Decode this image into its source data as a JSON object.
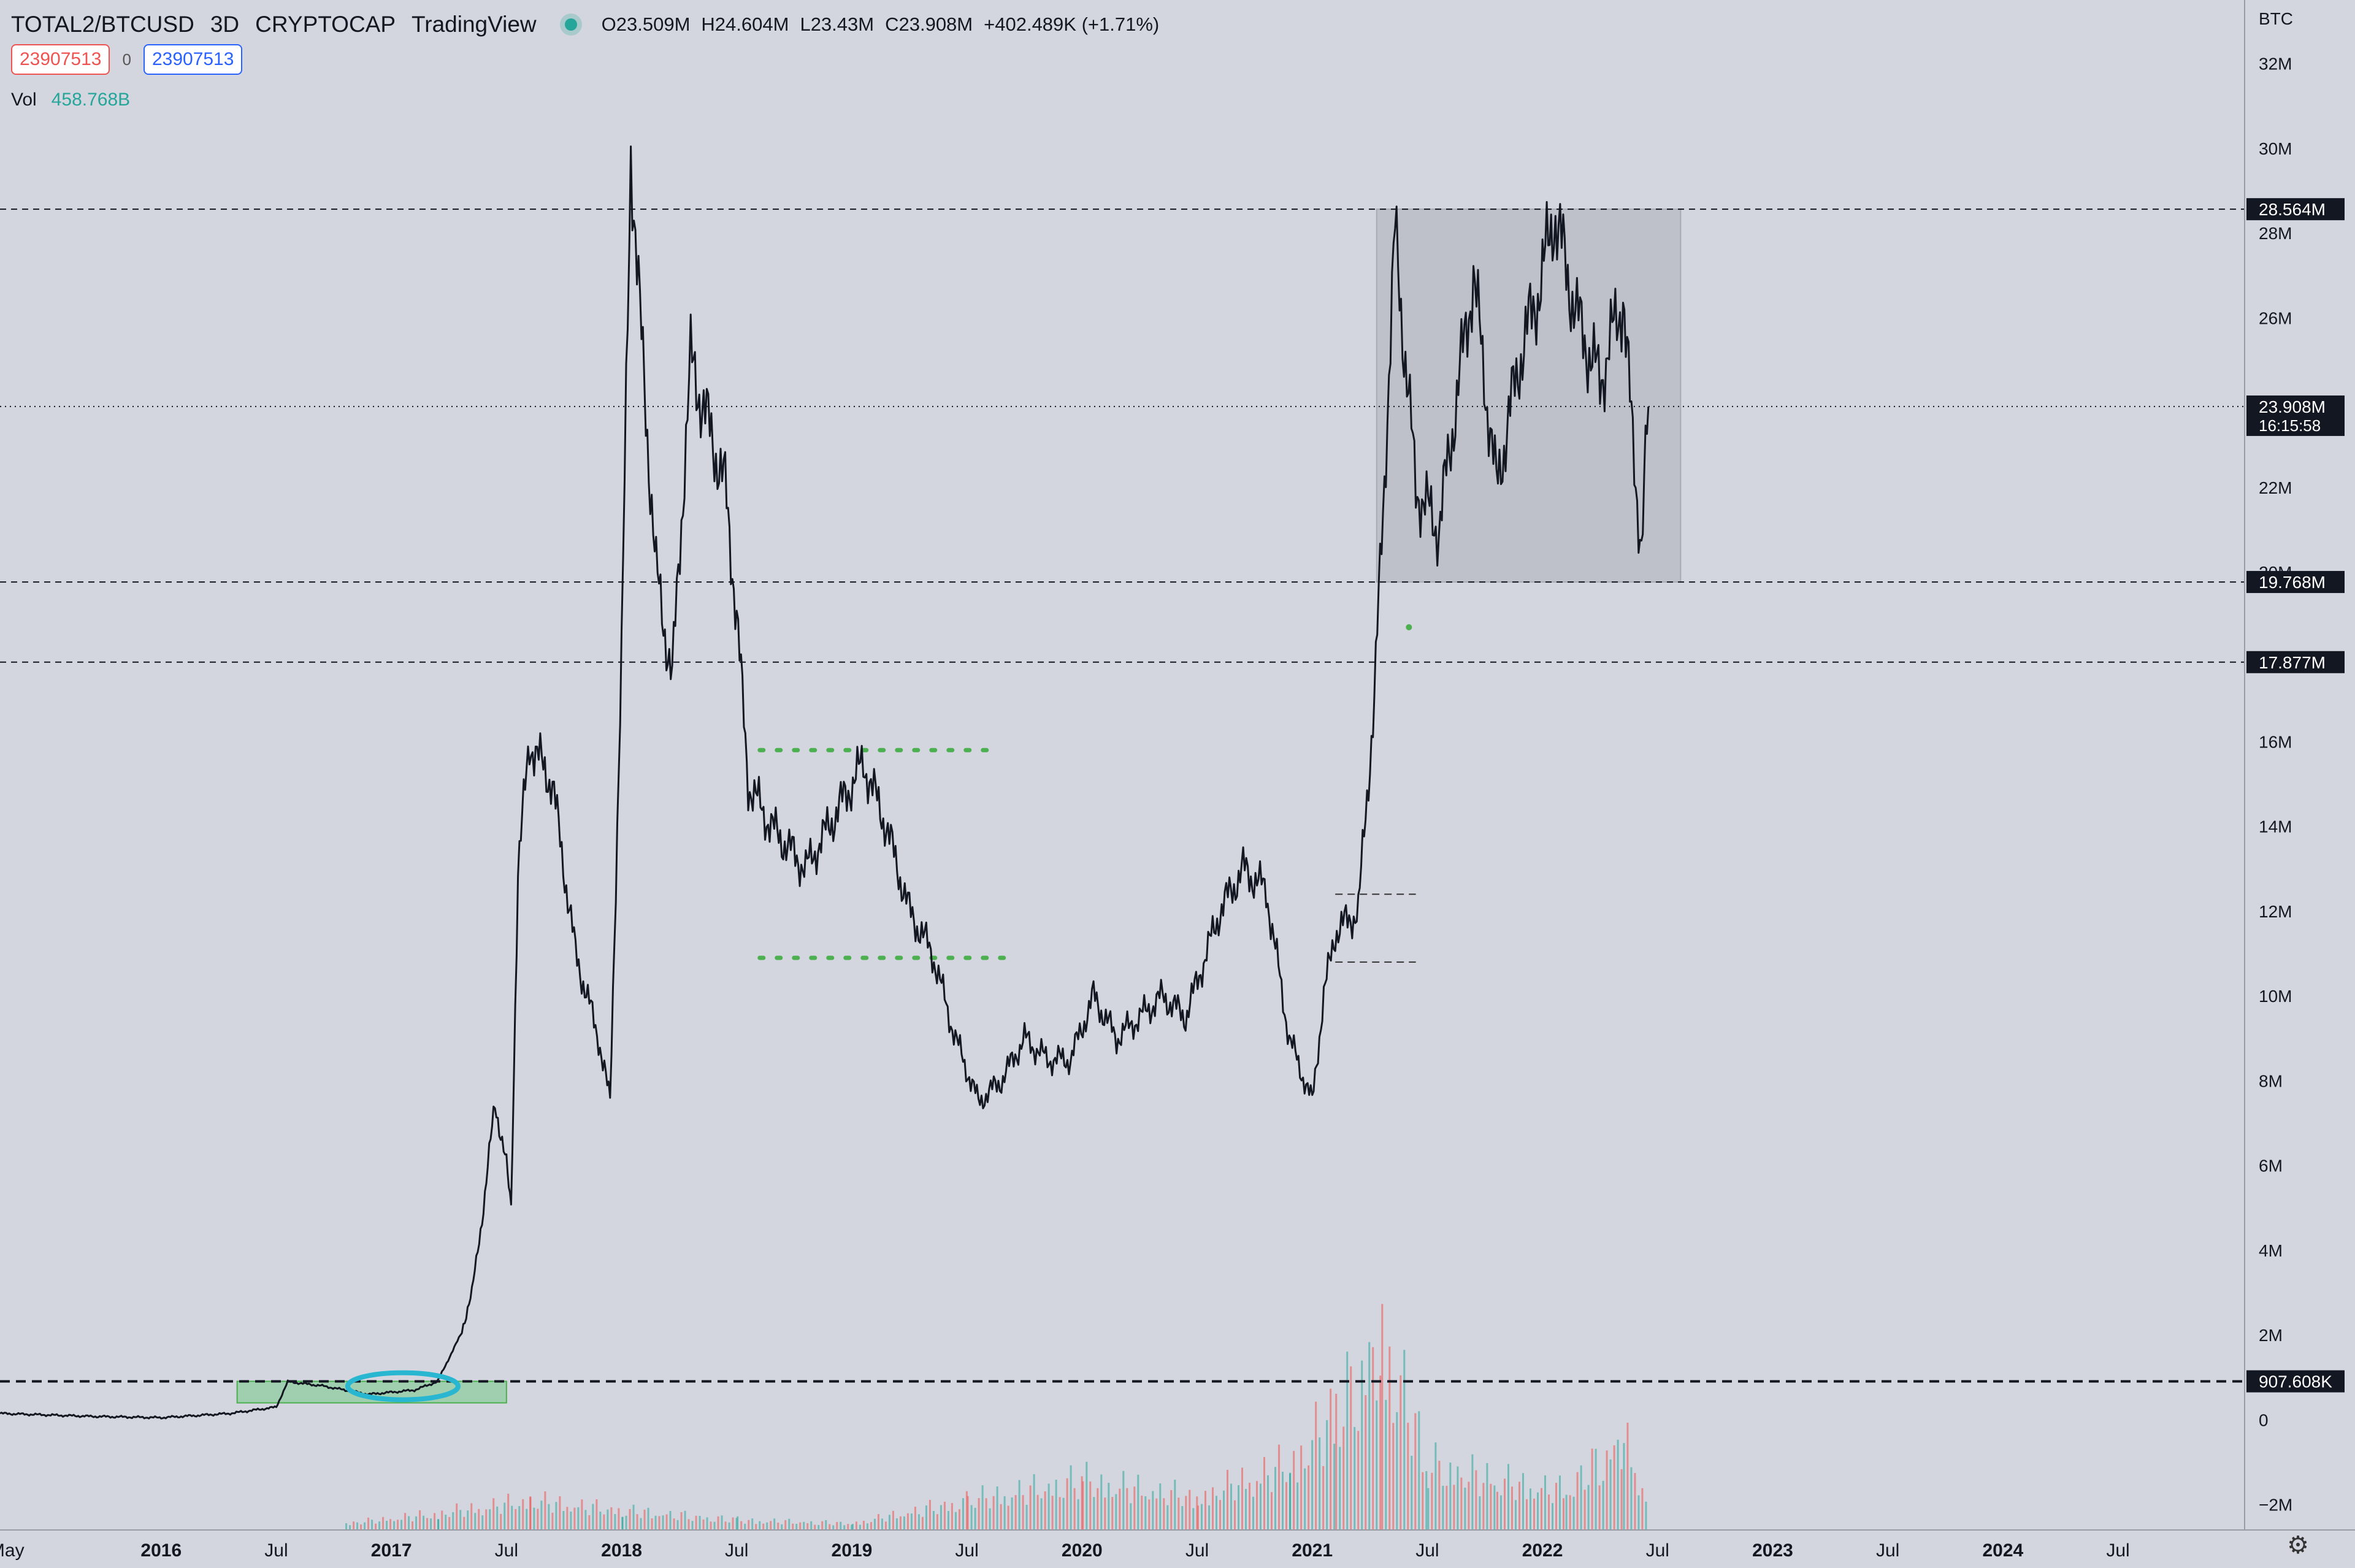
{
  "header": {
    "symbol": "TOTAL2/BTCUSD",
    "interval": "3D",
    "exchange": "CRYPTOCAP",
    "source": "TradingView",
    "open": "O23.509M",
    "high": "H24.604M",
    "low": "L23.43M",
    "close": "C23.908M",
    "change": "+402.489K (+1.71%)",
    "sell_price": "23907513",
    "spread": "0",
    "buy_price": "23907513",
    "volume_label": "Vol",
    "volume_value": "458.768B"
  },
  "colors": {
    "background": "#d3d6de",
    "candles": "#131722",
    "volume_up": "#26a69a",
    "volume_down": "#ef5350",
    "range_box": "#b7b9c2",
    "accumulation_box": "#7fc98f",
    "circle": "#29b6d1",
    "dotted_green": "#4caf50"
  },
  "chart_data": {
    "type": "line",
    "title": "TOTAL2/BTCUSD",
    "ylabel": "BTC",
    "ylim": [
      -2600000,
      33500000
    ],
    "y_ticks": [
      -2000000,
      0,
      2000000,
      4000000,
      6000000,
      8000000,
      10000000,
      12000000,
      14000000,
      16000000,
      18000000,
      20000000,
      22000000,
      24000000,
      26000000,
      28000000,
      30000000,
      32000000
    ],
    "y_tick_labels": [
      "−2M",
      "0",
      "2M",
      "4M",
      "6M",
      "8M",
      "10M",
      "12M",
      "14M",
      "16M",
      "18M",
      "20M",
      "22M",
      "24M",
      "26M",
      "28M",
      "30M",
      "32M"
    ],
    "x_ticks": [
      {
        "label": "May",
        "t": 2015.33
      },
      {
        "label": "2016",
        "t": 2016.0
      },
      {
        "label": "Jul",
        "t": 2016.5
      },
      {
        "label": "2017",
        "t": 2017.0
      },
      {
        "label": "Jul",
        "t": 2017.5
      },
      {
        "label": "2018",
        "t": 2018.0
      },
      {
        "label": "Jul",
        "t": 2018.5
      },
      {
        "label": "2019",
        "t": 2019.0
      },
      {
        "label": "Jul",
        "t": 2019.5
      },
      {
        "label": "2020",
        "t": 2020.0
      },
      {
        "label": "Jul",
        "t": 2020.5
      },
      {
        "label": "2021",
        "t": 2021.0
      },
      {
        "label": "Jul",
        "t": 2021.5
      },
      {
        "label": "2022",
        "t": 2022.0
      },
      {
        "label": "Jul",
        "t": 2022.5
      },
      {
        "label": "2023",
        "t": 2023.0
      },
      {
        "label": "Jul",
        "t": 2023.5
      },
      {
        "label": "2024",
        "t": 2024.0
      },
      {
        "label": "Jul",
        "t": 2024.5
      }
    ],
    "x_range": [
      2015.3,
      2025.05
    ],
    "series": [
      {
        "values": [
          [
            2015.3,
            150000
          ],
          [
            2015.7,
            80000
          ],
          [
            2016.0,
            50000
          ],
          [
            2016.3,
            150000
          ],
          [
            2016.5,
            300000
          ],
          [
            2016.55,
            900000
          ],
          [
            2016.7,
            800000
          ],
          [
            2016.9,
            600000
          ],
          [
            2017.1,
            700000
          ],
          [
            2017.2,
            900000
          ],
          [
            2017.3,
            2000000
          ],
          [
            2017.35,
            3000000
          ],
          [
            2017.4,
            5000000
          ],
          [
            2017.45,
            7500000
          ],
          [
            2017.5,
            6000000
          ],
          [
            2017.52,
            5000000
          ],
          [
            2017.55,
            13000000
          ],
          [
            2017.6,
            16000000
          ],
          [
            2017.7,
            15000000
          ],
          [
            2017.8,
            11000000
          ],
          [
            2017.9,
            9000000
          ],
          [
            2017.95,
            7500000
          ],
          [
            2018.0,
            18000000
          ],
          [
            2018.04,
            30000000
          ],
          [
            2018.08,
            26000000
          ],
          [
            2018.15,
            20000000
          ],
          [
            2018.22,
            17500000
          ],
          [
            2018.3,
            25000000
          ],
          [
            2018.35,
            24000000
          ],
          [
            2018.45,
            22000000
          ],
          [
            2018.5,
            19000000
          ],
          [
            2018.55,
            15000000
          ],
          [
            2018.65,
            14000000
          ],
          [
            2018.8,
            13000000
          ],
          [
            2018.9,
            14000000
          ],
          [
            2019.05,
            15500000
          ],
          [
            2019.15,
            14000000
          ],
          [
            2019.25,
            12000000
          ],
          [
            2019.35,
            11000000
          ],
          [
            2019.45,
            9000000
          ],
          [
            2019.55,
            7500000
          ],
          [
            2019.65,
            8000000
          ],
          [
            2019.75,
            9000000
          ],
          [
            2019.85,
            8500000
          ],
          [
            2019.95,
            8500000
          ],
          [
            2020.05,
            10000000
          ],
          [
            2020.15,
            9000000
          ],
          [
            2020.25,
            9500000
          ],
          [
            2020.35,
            10000000
          ],
          [
            2020.45,
            9500000
          ],
          [
            2020.6,
            12000000
          ],
          [
            2020.7,
            13000000
          ],
          [
            2020.8,
            12500000
          ],
          [
            2020.9,
            9000000
          ],
          [
            2021.0,
            7500000
          ],
          [
            2021.05,
            10000000
          ],
          [
            2021.1,
            11500000
          ],
          [
            2021.2,
            12000000
          ],
          [
            2021.27,
            17000000
          ],
          [
            2021.32,
            23000000
          ],
          [
            2021.36,
            28000000
          ],
          [
            2021.45,
            22000000
          ],
          [
            2021.55,
            21000000
          ],
          [
            2021.7,
            27000000
          ],
          [
            2021.8,
            22000000
          ],
          [
            2021.9,
            25000000
          ],
          [
            2022.0,
            27000000
          ],
          [
            2022.05,
            28500000
          ],
          [
            2022.15,
            26000000
          ],
          [
            2022.25,
            24500000
          ],
          [
            2022.35,
            26500000
          ],
          [
            2022.38,
            24000000
          ],
          [
            2022.43,
            20500000
          ],
          [
            2022.46,
            23908000
          ]
        ]
      }
    ],
    "volume": {
      "unit": "BTC",
      "bars": [
        [
          2016.8,
          200000
        ],
        [
          2017.2,
          500000
        ],
        [
          2017.6,
          900000
        ],
        [
          2018.0,
          600000
        ],
        [
          2018.5,
          300000
        ],
        [
          2019.0,
          200000
        ],
        [
          2019.5,
          900000
        ],
        [
          2020.0,
          1500000
        ],
        [
          2020.5,
          1000000
        ],
        [
          2020.9,
          2000000
        ],
        [
          2021.1,
          3500000
        ],
        [
          2021.3,
          6000000
        ],
        [
          2021.5,
          2000000
        ],
        [
          2021.8,
          1500000
        ],
        [
          2022.1,
          1200000
        ],
        [
          2022.35,
          2800000
        ],
        [
          2022.45,
          1000000
        ]
      ]
    },
    "horizontal_levels": [
      {
        "value": 28564000,
        "label": "28.564M",
        "style": "dashed"
      },
      {
        "value": 23908000,
        "label": "23.908M",
        "style": "dotted",
        "sublabel": "16:15:58"
      },
      {
        "value": 19768000,
        "label": "19.768M",
        "style": "dashed"
      },
      {
        "value": 17877000,
        "label": "17.877M",
        "style": "dashed"
      },
      {
        "value": 907608,
        "label": "907.608K",
        "style": "dashed-bold"
      }
    ],
    "range_box": {
      "x0": 2021.28,
      "x1": 2022.6,
      "y0": 19768000,
      "y1": 28564000
    },
    "accumulation_box": {
      "x0": 2016.33,
      "x1": 2017.5,
      "y0": 400000,
      "y1": 907608
    },
    "dotted_range": [
      {
        "x0": 2018.6,
        "x1": 2019.6,
        "value": 15800000
      },
      {
        "x0": 2018.6,
        "x1": 2019.66,
        "value": 10900000
      }
    ],
    "short_levels": [
      {
        "x0": 2021.1,
        "x1": 2021.45,
        "value": 12400000
      },
      {
        "x0": 2021.1,
        "x1": 2021.45,
        "value": 10800000
      }
    ],
    "grid": false,
    "legend": "none"
  },
  "ui": {
    "settings_icon": "gear-icon"
  }
}
